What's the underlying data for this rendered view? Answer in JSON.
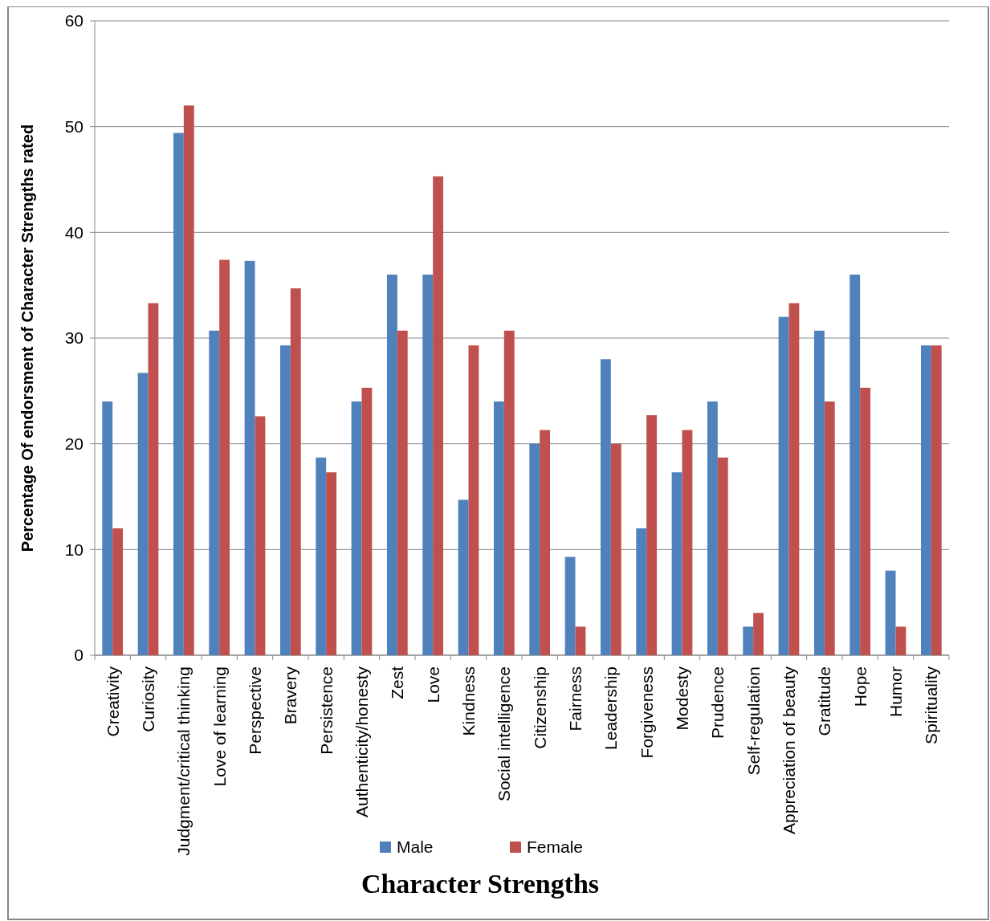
{
  "chart_data": {
    "type": "bar",
    "xlabel": "Character Strengths",
    "ylabel": "Percentage Of endorsment of Character Strengths rated",
    "categories": [
      "Creativity",
      "Curiosity",
      "Judgment/critical thinking",
      "Love of learning",
      "Perspective",
      "Bravery",
      "Persistence",
      "Authenticity/honesty",
      "Zest",
      "Love",
      "Kindness",
      "Social intelligence",
      "Citizenship",
      "Fairness",
      "Leadership",
      "Forgiveness",
      "Modesty",
      "Prudence",
      "Self-regulation",
      "Appreciation of beauty",
      "Gratitude",
      "Hope",
      "Humor",
      "Spirituality"
    ],
    "series": [
      {
        "name": "Male",
        "color": "#4f81bd",
        "values": [
          24,
          26.7,
          49.4,
          30.7,
          37.3,
          29.3,
          18.7,
          24,
          36,
          36,
          14.7,
          24,
          20,
          9.3,
          28,
          12,
          17.3,
          24,
          2.7,
          32,
          30.7,
          36,
          8,
          29.3
        ]
      },
      {
        "name": "Female",
        "color": "#c0504d",
        "values": [
          12,
          33.3,
          52,
          37.4,
          22.6,
          34.7,
          17.3,
          25.3,
          30.7,
          45.3,
          29.3,
          30.7,
          21.3,
          2.7,
          20,
          22.7,
          21.3,
          18.7,
          4,
          33.3,
          24,
          25.3,
          2.7,
          29.3
        ]
      }
    ],
    "ylim": [
      0,
      60
    ],
    "yticks": [
      0,
      10,
      20,
      30,
      40,
      50,
      60
    ],
    "grid": "y",
    "legend": "bottom"
  }
}
